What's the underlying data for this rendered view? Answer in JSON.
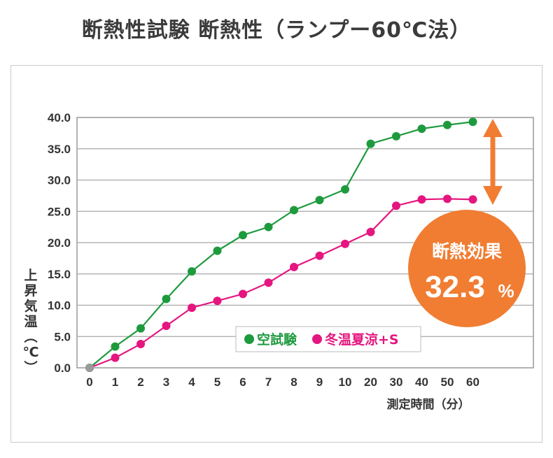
{
  "title": "断熱性試験 断熱性（ランプー60℃法）",
  "chart_data": {
    "type": "line",
    "x": [
      "0",
      "1",
      "2",
      "3",
      "4",
      "5",
      "6",
      "7",
      "8",
      "9",
      "10",
      "20",
      "30",
      "40",
      "50",
      "60"
    ],
    "xlabel": "測定時間（分）",
    "ylabel": "上昇気温（℃）",
    "ylim": [
      0,
      40
    ],
    "yticks": [
      "0.0",
      "5.0",
      "10.0",
      "15.0",
      "20.0",
      "25.0",
      "30.0",
      "35.0",
      "40.0"
    ],
    "grid": true,
    "legend_position": "bottom-center",
    "series": [
      {
        "name": "空試験",
        "color": "#1e9a3e",
        "values": [
          0.0,
          3.4,
          6.3,
          11.0,
          15.4,
          18.7,
          21.2,
          22.5,
          25.2,
          26.8,
          28.5,
          35.8,
          37.0,
          38.2,
          38.8,
          39.3
        ]
      },
      {
        "name": "冬温夏涼+S",
        "color": "#e5167f",
        "values": [
          0.0,
          1.6,
          3.8,
          6.7,
          9.6,
          10.7,
          11.8,
          13.6,
          16.1,
          17.9,
          19.8,
          21.7,
          25.9,
          26.9,
          27.0,
          26.9
        ]
      }
    ],
    "annotation": {
      "label": "断熱効果",
      "value": "32.3",
      "unit": "%",
      "color": "#f07d32"
    }
  }
}
